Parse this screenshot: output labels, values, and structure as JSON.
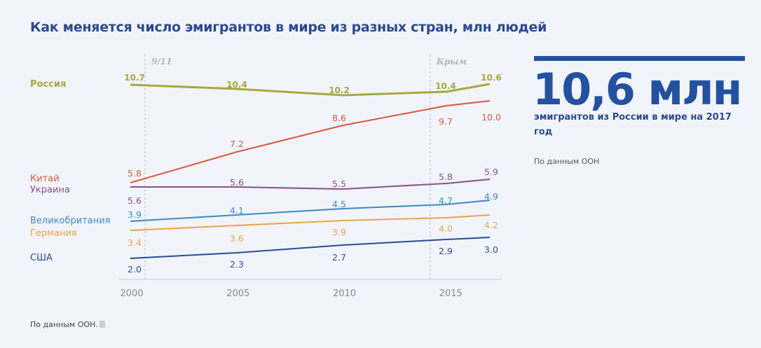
{
  "title": "Как меняется число эмигрантов в мире из разных стран, млн людей",
  "highlight": {
    "value": "10,6 млн",
    "caption": "эмигрантов из России в мире на 2017 год",
    "source": "По данным ООН"
  },
  "footer": "По данным ООН.",
  "chart_data": {
    "type": "line",
    "x": [
      2000,
      2005,
      2010,
      2015,
      2017
    ],
    "x_tick_labels": [
      "2000",
      "2005",
      "2010",
      "2015"
    ],
    "annotations": [
      {
        "x": 2001,
        "label": "9/11"
      },
      {
        "x": 2014,
        "label": "Крым"
      }
    ],
    "series": [
      {
        "name": "Россия",
        "color": "#a8a83c",
        "values": [
          10.7,
          10.4,
          10.2,
          10.4,
          10.6
        ],
        "labels": [
          "10.7",
          "10.4",
          "10.2",
          "10.4",
          "10.6"
        ]
      },
      {
        "name": "Китай",
        "color": "#d9593e",
        "values": [
          5.8,
          7.2,
          8.6,
          9.7,
          10.0
        ],
        "labels": [
          "5.8",
          "7.2",
          "8.6",
          "9.7",
          "10.0"
        ]
      },
      {
        "name": "Украина",
        "color": "#8a4f86",
        "values": [
          5.6,
          5.6,
          5.5,
          5.8,
          5.9
        ],
        "labels": [
          "5.6",
          "5.6",
          "5.5",
          "5.8",
          "5.9"
        ]
      },
      {
        "name": "Великобритания",
        "color": "#3b8ac4",
        "values": [
          3.9,
          4.1,
          4.5,
          4.7,
          4.9
        ],
        "labels": [
          "3.9",
          "4.1",
          "4.5",
          "4.7",
          "4.9"
        ]
      },
      {
        "name": "Германия",
        "color": "#e8a445",
        "values": [
          3.4,
          3.6,
          3.9,
          4.0,
          4.2
        ],
        "labels": [
          "3.4",
          "3.6",
          "3.9",
          "4.0",
          "4.2"
        ]
      },
      {
        "name": "США",
        "color": "#2a4d95",
        "values": [
          2.0,
          2.3,
          2.7,
          2.9,
          3.0
        ],
        "labels": [
          "2.0",
          "2.3",
          "2.7",
          "2.9",
          "3.0"
        ]
      }
    ],
    "grid": false,
    "legend": "left"
  }
}
